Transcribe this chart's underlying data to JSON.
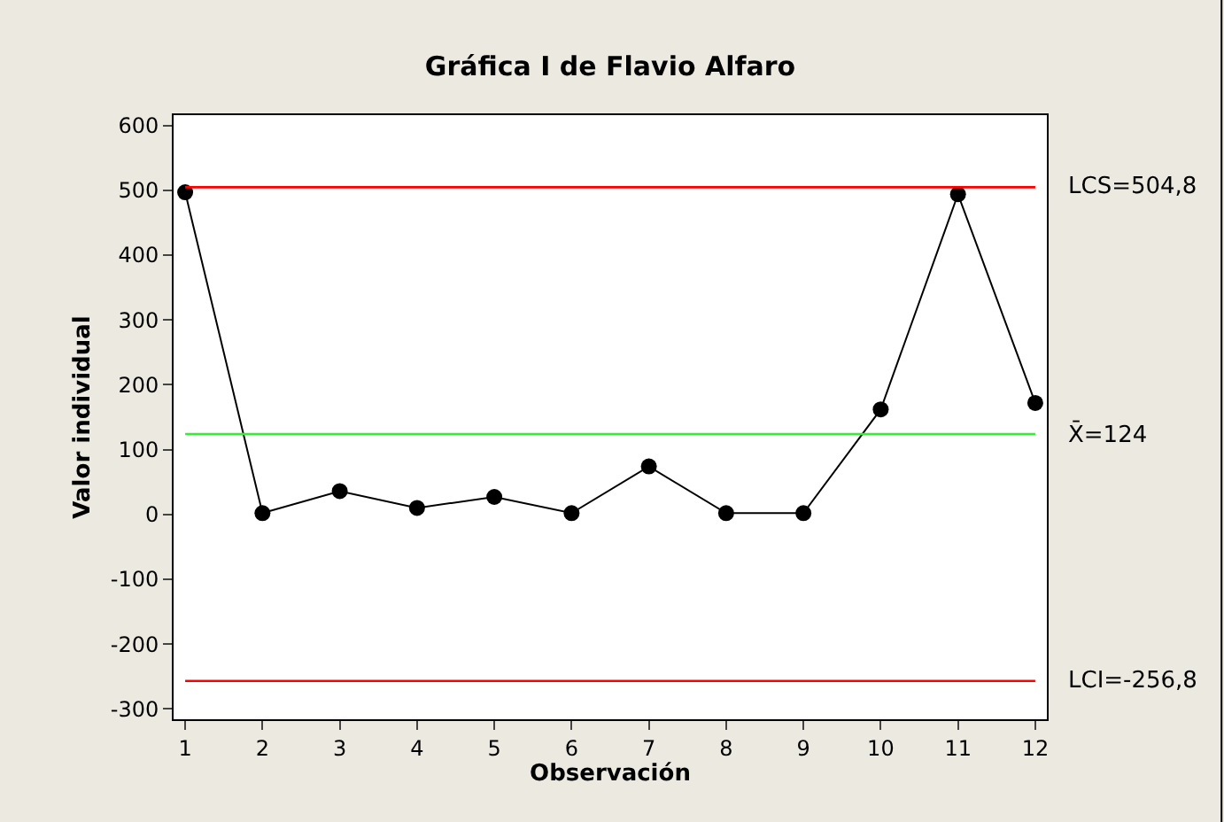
{
  "chart_data": {
    "type": "line",
    "title": "Gráfica I de Flavio Alfaro",
    "xlabel": "Observación",
    "ylabel": "Valor individual",
    "x": [
      1,
      2,
      3,
      4,
      5,
      6,
      7,
      8,
      9,
      10,
      11,
      12
    ],
    "series": [
      {
        "color": "#000000",
        "values": [
          497,
          2,
          36,
          10,
          27,
          2,
          74,
          2,
          2,
          162,
          494,
          172
        ]
      }
    ],
    "xlim": [
      0.85,
      12.15
    ],
    "xticks": [
      1,
      2,
      3,
      4,
      5,
      6,
      7,
      8,
      9,
      10,
      11,
      12
    ],
    "ylim": [
      -316,
      616
    ],
    "yticks": [
      -300,
      -200,
      -100,
      0,
      100,
      200,
      300,
      400,
      500,
      600
    ],
    "ref_lines": [
      {
        "axis": "y",
        "value": 504.8,
        "label": "LCS=504,8",
        "color": "#ff0000"
      },
      {
        "axis": "y",
        "value": 124,
        "label": "X̄=124",
        "color": "#33ee33"
      },
      {
        "axis": "y",
        "value": -256.8,
        "label": "LCI=-256,8",
        "color": "#ff0000"
      }
    ],
    "marker": "circle",
    "line_style": "solid",
    "grid": false
  }
}
